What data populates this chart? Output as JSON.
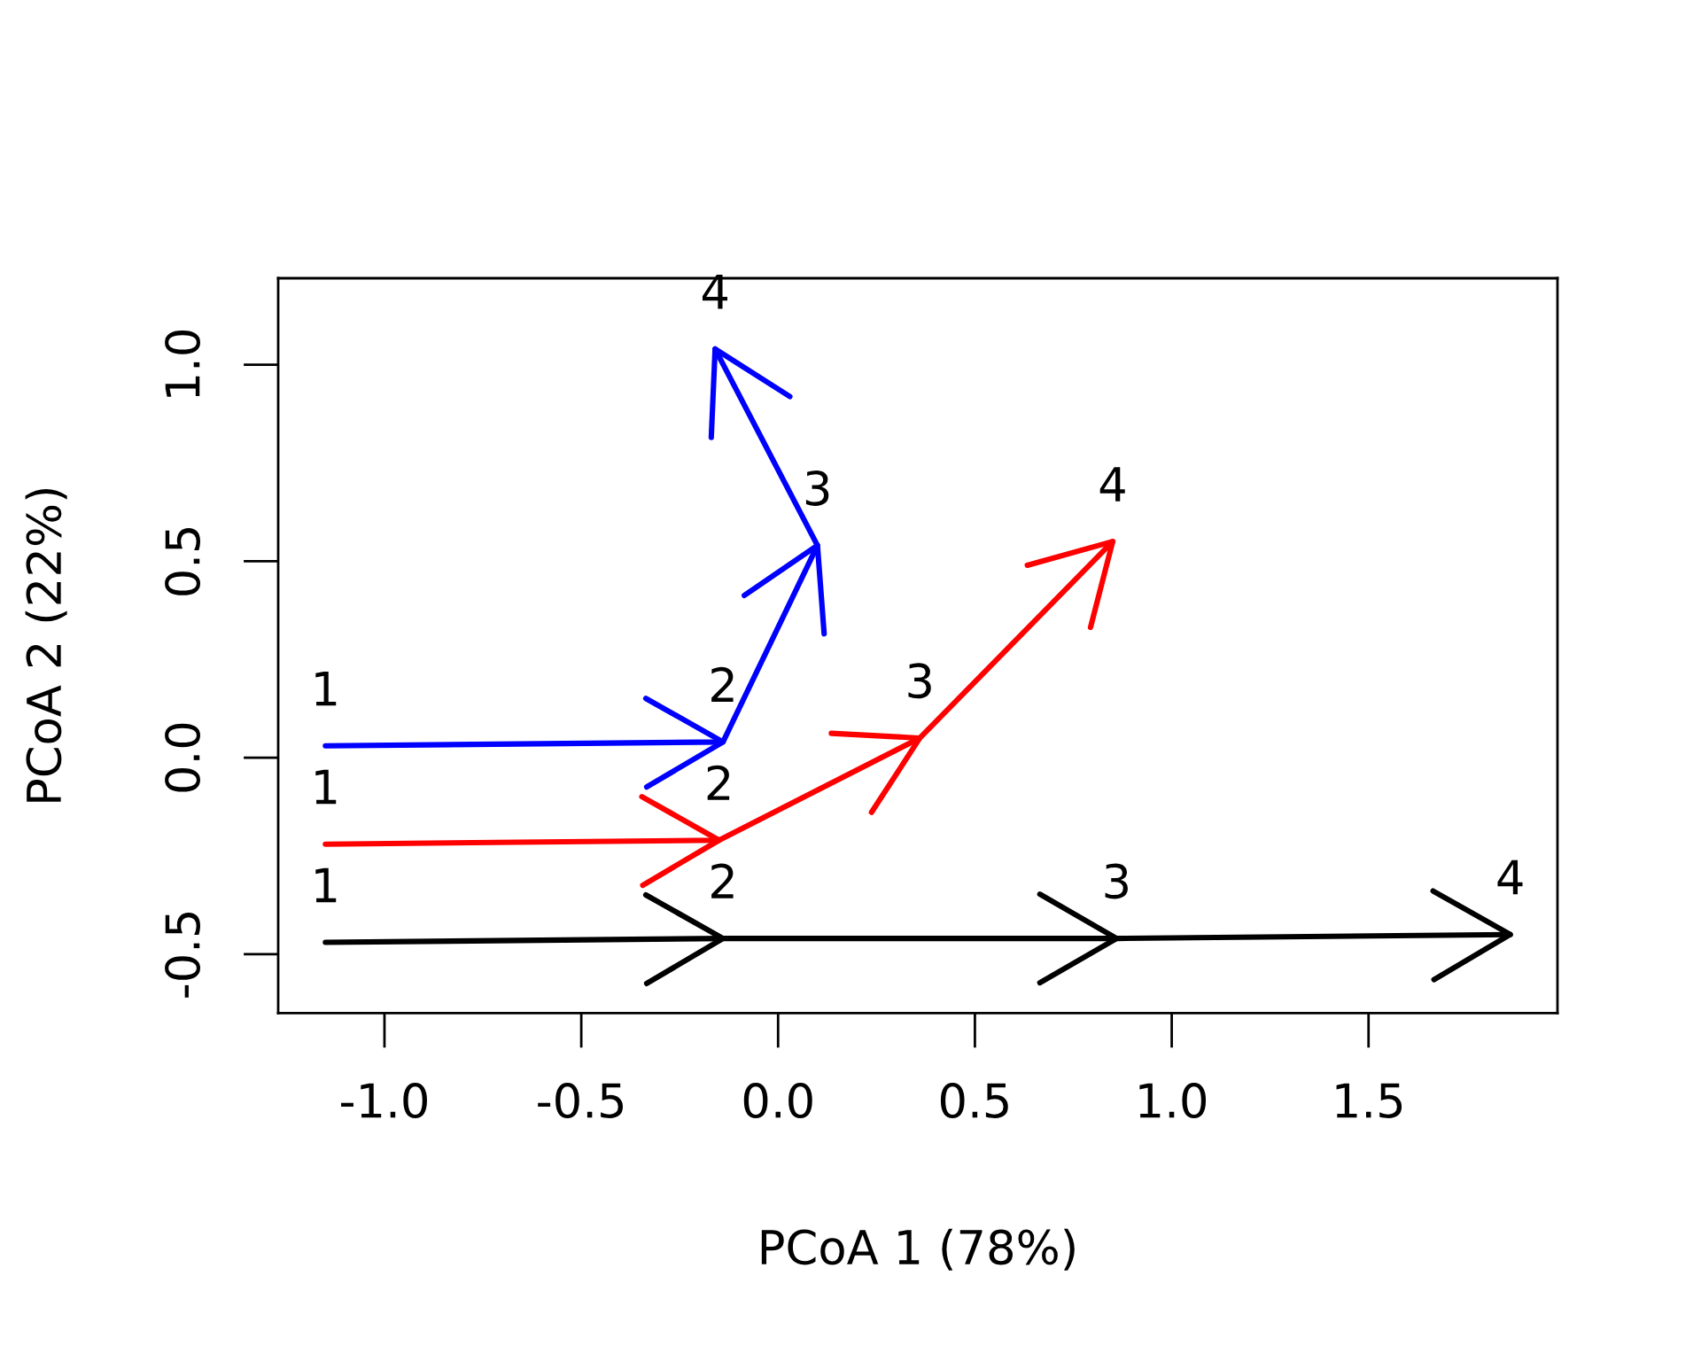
{
  "chart_data": {
    "type": "line",
    "xlabel": "PCoA 1 (78%)",
    "ylabel": "PCoA 2 (22%)",
    "xlim": [
      -1.27,
      1.98
    ],
    "ylim": [
      -0.65,
      1.22
    ],
    "xticks": [
      {
        "value": -1,
        "label": "-1.0"
      },
      -0.5,
      {
        "value": 0,
        "label": "0.0"
      },
      0.5,
      {
        "value": 1,
        "label": "1.0"
      },
      1.5
    ],
    "yticks": [
      -0.5,
      {
        "value": 0,
        "label": "0.0"
      },
      0.5,
      {
        "value": 1,
        "label": "1.0"
      }
    ],
    "marker": "none",
    "line_style": "solid",
    "series": [
      {
        "color": "#000000",
        "x": [
          -1.15,
          -0.14,
          0.86,
          1.86
        ],
        "values": [
          -0.47,
          -0.46,
          -0.46,
          -0.45
        ]
      },
      {
        "color": "#ff0000",
        "x": [
          -1.15,
          -0.15,
          0.36,
          0.85
        ],
        "values": [
          -0.22,
          -0.21,
          0.05,
          0.55
        ]
      },
      {
        "color": "#0000ff",
        "x": [
          -1.15,
          -0.14,
          0.1,
          -0.16
        ],
        "values": [
          0.03,
          0.04,
          0.54,
          1.04
        ]
      }
    ],
    "annotations": [
      {
        "text": "1",
        "x": -1.15,
        "y": -0.47
      },
      {
        "text": "2",
        "x": -0.14,
        "y": -0.46
      },
      {
        "text": "3",
        "x": 0.86,
        "y": -0.46
      },
      {
        "text": "4",
        "x": 1.86,
        "y": -0.45
      },
      {
        "text": "1",
        "x": -1.15,
        "y": -0.22
      },
      {
        "text": "2",
        "x": -0.15,
        "y": -0.21
      },
      {
        "text": "3",
        "x": 0.36,
        "y": 0.05
      },
      {
        "text": "4",
        "x": 0.85,
        "y": 0.55
      },
      {
        "text": "1",
        "x": -1.15,
        "y": 0.03
      },
      {
        "text": "2",
        "x": -0.14,
        "y": 0.04
      },
      {
        "text": "3",
        "x": 0.1,
        "y": 0.54
      },
      {
        "text": "4",
        "x": -0.16,
        "y": 1.04
      }
    ]
  }
}
